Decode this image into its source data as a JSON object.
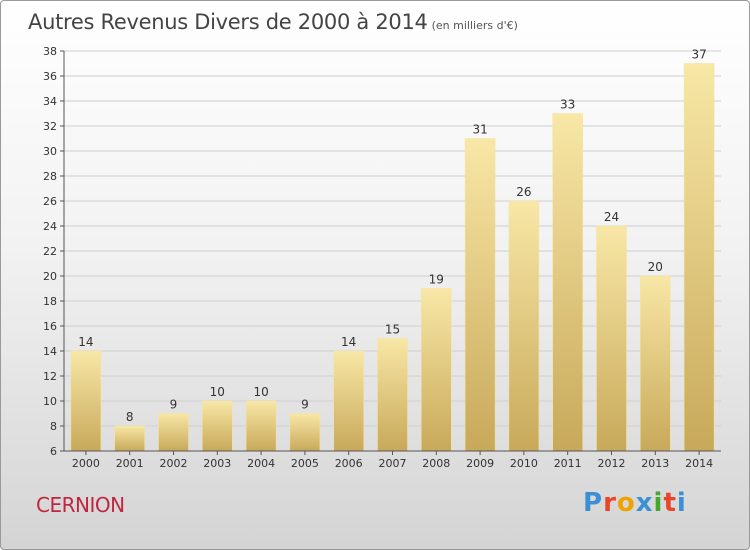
{
  "title": "Autres Revenus Divers de 2000 à 2014",
  "subtitle": "(en milliers d'€)",
  "commune": "CERNION",
  "logo": {
    "text": "Proxiti",
    "colors": [
      "#3b8fd4",
      "#e8462a",
      "#f0a300",
      "#3b8fd4",
      "#44a830",
      "#e8462a",
      "#3b8fd4"
    ]
  },
  "colors": {
    "bar_light": "#f8e7a6",
    "bar_dark": "#c8a95a",
    "commune": "#c0263f"
  },
  "chart_data": {
    "type": "bar",
    "categories": [
      "2000",
      "2001",
      "2002",
      "2003",
      "2004",
      "2005",
      "2006",
      "2007",
      "2008",
      "2009",
      "2010",
      "2011",
      "2012",
      "2013",
      "2014"
    ],
    "values": [
      14,
      8,
      9,
      10,
      10,
      9,
      14,
      15,
      19,
      31,
      26,
      33,
      24,
      20,
      37
    ],
    "ylim": [
      6,
      38
    ],
    "yticks": [
      6,
      8,
      10,
      12,
      14,
      16,
      18,
      20,
      22,
      24,
      26,
      28,
      30,
      32,
      34,
      36,
      38
    ],
    "grid": true,
    "xlabel": "",
    "ylabel": ""
  }
}
